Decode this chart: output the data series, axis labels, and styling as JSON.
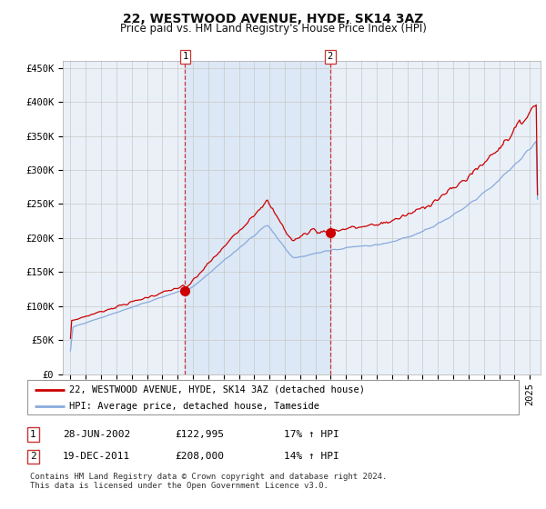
{
  "title": "22, WESTWOOD AVENUE, HYDE, SK14 3AZ",
  "subtitle": "Price paid vs. HM Land Registry's House Price Index (HPI)",
  "ylabel_ticks": [
    "£0",
    "£50K",
    "£100K",
    "£150K",
    "£200K",
    "£250K",
    "£300K",
    "£350K",
    "£400K",
    "£450K"
  ],
  "ytick_values": [
    0,
    50000,
    100000,
    150000,
    200000,
    250000,
    300000,
    350000,
    400000,
    450000
  ],
  "ylim": [
    0,
    460000
  ],
  "xlim_start": 1994.5,
  "xlim_end": 2025.7,
  "marker1_x": 2002.49,
  "marker1_y": 122995,
  "marker2_x": 2011.96,
  "marker2_y": 208000,
  "vline1_x": 2002.49,
  "vline2_x": 2011.96,
  "shade_x1": 2002.49,
  "shade_x2": 2011.96,
  "red_line_color": "#cc0000",
  "blue_line_color": "#88aadd",
  "shade_color": "#dce8f5",
  "background_color": "#eaf0f8",
  "grid_color": "#c8c8c8",
  "legend1_label": "22, WESTWOOD AVENUE, HYDE, SK14 3AZ (detached house)",
  "legend2_label": "HPI: Average price, detached house, Tameside",
  "ann1_label": "1",
  "ann2_label": "2",
  "ann1_date": "28-JUN-2002",
  "ann1_price": "£122,995",
  "ann1_hpi": "17% ↑ HPI",
  "ann2_date": "19-DEC-2011",
  "ann2_price": "£208,000",
  "ann2_hpi": "14% ↑ HPI",
  "footer": "Contains HM Land Registry data © Crown copyright and database right 2024.\nThis data is licensed under the Open Government Licence v3.0.",
  "title_fontsize": 10,
  "subtitle_fontsize": 8.5,
  "tick_fontsize": 7.5,
  "legend_fontsize": 7.5,
  "ann_fontsize": 8
}
